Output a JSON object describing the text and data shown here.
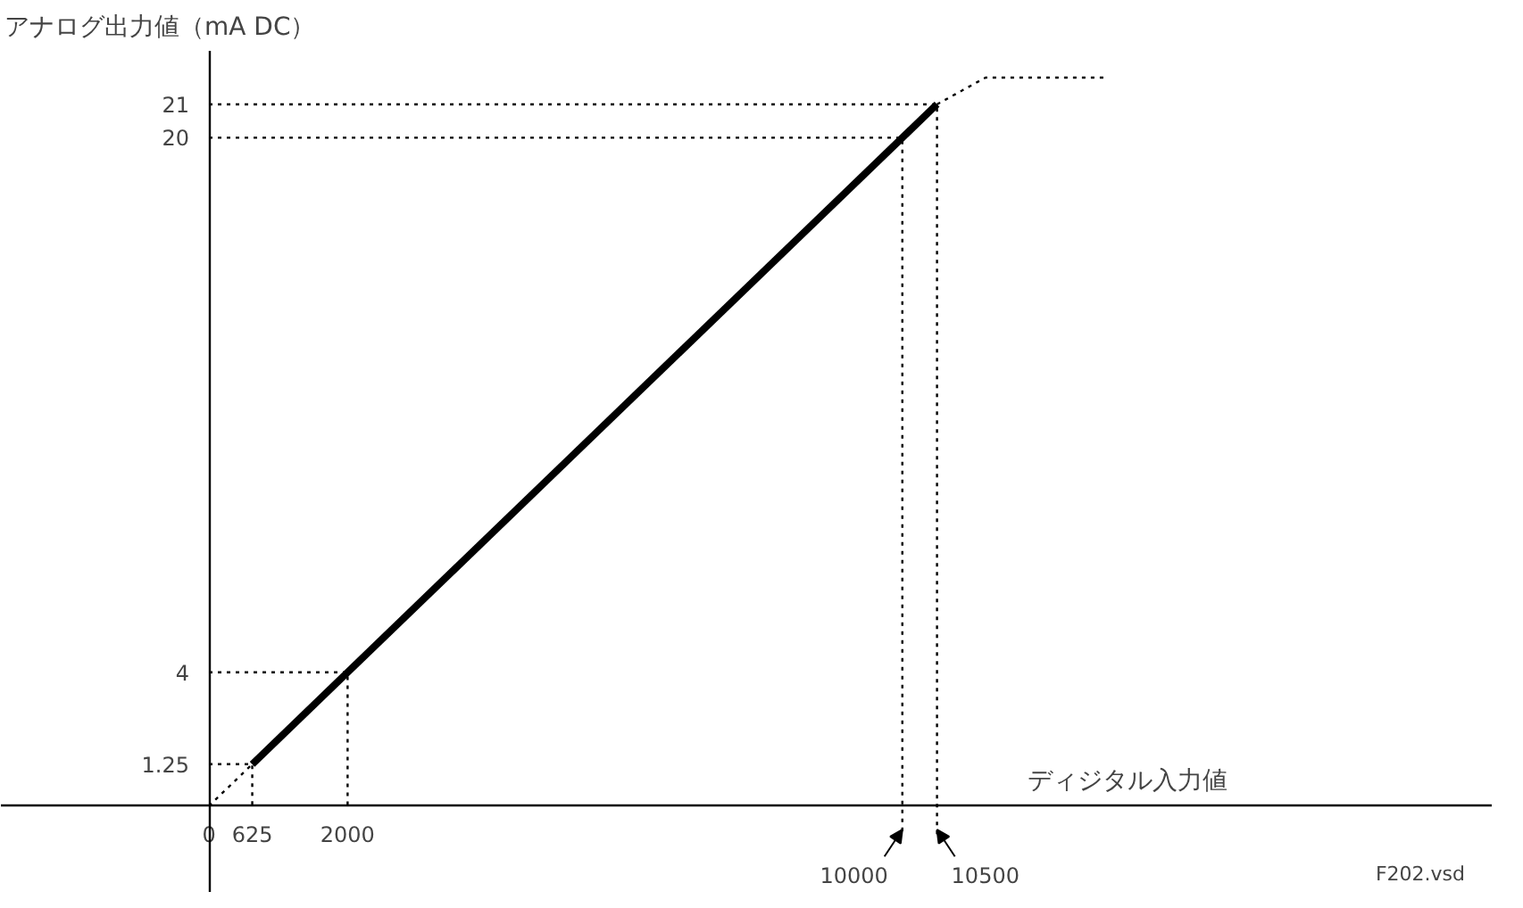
{
  "chart_data": {
    "type": "line",
    "xlabel": "ディジタル入力値",
    "ylabel": "アナログ出力値（mA DC）",
    "xlim": [
      -3000,
      18500
    ],
    "ylim": [
      -2.6,
      22.6
    ],
    "xticks": [
      0,
      625,
      2000
    ],
    "yticks": [
      1.25,
      4,
      20,
      21
    ],
    "grid": false,
    "series": [
      {
        "x": [
          625,
          10500
        ],
        "values": [
          1.25,
          21
        ],
        "color": "#000000",
        "line_style": "solid"
      },
      {
        "x": [
          0,
          625
        ],
        "values": [
          0,
          1.25
        ],
        "color": "#000000",
        "line_style": "dotted"
      },
      {
        "x": [
          10500,
          11200,
          12900
        ],
        "values": [
          21,
          21.8,
          21.8
        ],
        "color": "#000000",
        "line_style": "dotted"
      },
      {
        "x": [
          0,
          625,
          625
        ],
        "values": [
          1.25,
          1.25,
          0
        ],
        "color": "#000000",
        "line_style": "dotted"
      },
      {
        "x": [
          0,
          2000,
          2000
        ],
        "values": [
          4,
          4,
          0
        ],
        "color": "#000000",
        "line_style": "dotted"
      },
      {
        "x": [
          0,
          10000,
          10000
        ],
        "values": [
          20,
          20,
          -0.9
        ],
        "color": "#000000",
        "line_style": "dotted"
      },
      {
        "x": [
          0,
          10500,
          10500
        ],
        "values": [
          21,
          21,
          -0.9
        ],
        "color": "#000000",
        "line_style": "dotted"
      }
    ],
    "annotations": [
      {
        "text": "10000",
        "x": 10000,
        "y": 0
      },
      {
        "text": "10500",
        "x": 10500,
        "y": 0
      },
      "F202.vsd"
    ]
  }
}
